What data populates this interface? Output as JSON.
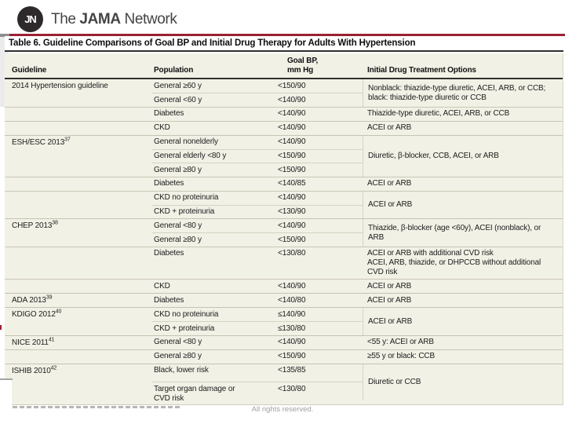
{
  "brand": {
    "monogram": "JN",
    "the": "The ",
    "jama": "JAMA",
    "network": " Network"
  },
  "slide": {
    "title": "Table 6. Guideline Comparisons of Goal BP and Initial Drug Therapy for Adults With Hypertension"
  },
  "table": {
    "headers": {
      "guideline": "Guideline",
      "population": "Population",
      "goal_line1": "Goal BP,",
      "goal_line2": "mm Hg",
      "drugs": "Initial Drug Treatment Options"
    },
    "sections": [
      {
        "guideline": "2014 Hypertension guideline",
        "sup": "",
        "groups": [
          {
            "rows": [
              {
                "population": "General ≥60 y",
                "goal": "<150/90"
              },
              {
                "population": "General <60 y",
                "goal": "<140/90"
              }
            ],
            "drug": "Nonblack: thiazide-type diuretic, ACEI, ARB, or CCB; black: thiazide-type diuretic or CCB"
          },
          {
            "rows": [
              {
                "population": "Diabetes",
                "goal": "<140/90"
              }
            ],
            "drug": "Thiazide-type diuretic, ACEI, ARB, or CCB"
          },
          {
            "rows": [
              {
                "population": "CKD",
                "goal": "<140/90"
              }
            ],
            "drug": "ACEI or ARB"
          }
        ]
      },
      {
        "guideline": "ESH/ESC 2013",
        "sup": "37",
        "groups": [
          {
            "rows": [
              {
                "population": "General nonelderly",
                "goal": "<140/90"
              },
              {
                "population": "General elderly <80 y",
                "goal": "<150/90"
              },
              {
                "population": "General ≥80 y",
                "goal": "<150/90"
              }
            ],
            "drug": "Diuretic, β-blocker, CCB, ACEI, or ARB"
          },
          {
            "rows": [
              {
                "population": "Diabetes",
                "goal": "<140/85"
              }
            ],
            "drug": "ACEI or ARB"
          },
          {
            "rows": [
              {
                "population": "CKD no proteinuria",
                "goal": "<140/90"
              },
              {
                "population": "CKD + proteinuria",
                "goal": "<130/90"
              }
            ],
            "drug": "ACEI or ARB"
          }
        ]
      },
      {
        "guideline": "CHEP 2013",
        "sup": "38",
        "groups": [
          {
            "rows": [
              {
                "population": "General <80 y",
                "goal": "<140/90"
              },
              {
                "population": "General ≥80 y",
                "goal": "<150/90"
              }
            ],
            "drug": "Thiazide, β-blocker (age <60y), ACEI (nonblack), or ARB"
          },
          {
            "rows": [
              {
                "population": "Diabetes",
                "goal": "<130/80"
              }
            ],
            "drug": "ACEI or ARB with additional CVD risk\nACEI, ARB, thiazide, or DHPCCB without additional CVD risk"
          },
          {
            "rows": [
              {
                "population": "CKD",
                "goal": "<140/90"
              }
            ],
            "drug": "ACEI or ARB"
          }
        ]
      },
      {
        "guideline": "ADA 2013",
        "sup": "39",
        "groups": [
          {
            "rows": [
              {
                "population": "Diabetes",
                "goal": "<140/80"
              }
            ],
            "drug": "ACEI or ARB"
          }
        ]
      },
      {
        "guideline": "KDIGO 2012",
        "sup": "40",
        "groups": [
          {
            "rows": [
              {
                "population": "CKD no proteinuria",
                "goal": "≤140/90"
              },
              {
                "population": "CKD + proteinuria",
                "goal": "≤130/80"
              }
            ],
            "drug": "ACEI or ARB"
          }
        ]
      },
      {
        "guideline": "NICE 2011",
        "sup": "41",
        "groups": [
          {
            "rows": [
              {
                "population": "General <80 y",
                "goal": "<140/90"
              }
            ],
            "drug": "<55 y: ACEI or ARB"
          },
          {
            "rows": [
              {
                "population": "General ≥80 y",
                "goal": "<150/90"
              }
            ],
            "drug": "≥55 y or black: CCB"
          }
        ]
      },
      {
        "guideline": "ISHIB 2010",
        "sup": "42",
        "groups": [
          {
            "rows": [
              {
                "population": "Black, lower risk",
                "goal": "<135/85"
              },
              {
                "population": "Target organ damage or CVD risk",
                "goal": "<130/80"
              }
            ],
            "drug": "Diuretic or CCB"
          }
        ]
      }
    ]
  },
  "footer": {
    "rights": "All rights reserved."
  },
  "colors": {
    "accent_red": "#9b2033",
    "table_bg": "#f2f1e6",
    "rule_dark": "#2f2f2f",
    "logo_bg": "#2e2a2b",
    "separator": "#c9c6b4",
    "footer_gray": "#a0a0a0"
  }
}
